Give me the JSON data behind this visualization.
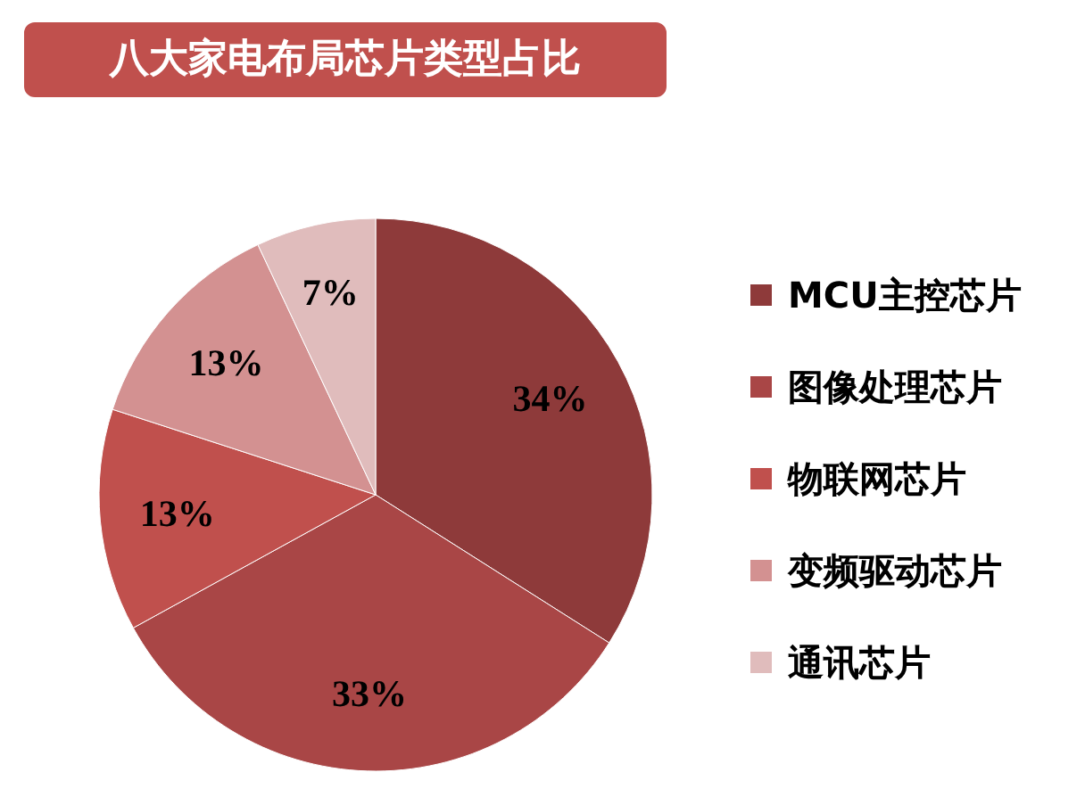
{
  "chart_data": {
    "type": "pie",
    "title": "八大家电布局芯片类型占比",
    "categories": [
      "MCU主控芯片",
      "图像处理芯片",
      "物联网芯片",
      "变频驱动芯片",
      "通讯芯片"
    ],
    "values": [
      34,
      33,
      13,
      13,
      7
    ],
    "colors": [
      "#8e3a3a",
      "#a94646",
      "#c0504d",
      "#d39191",
      "#e0bcbc"
    ],
    "value_labels": [
      "34%",
      "33%",
      "13%",
      "13%",
      "7%"
    ],
    "legend": "right"
  }
}
